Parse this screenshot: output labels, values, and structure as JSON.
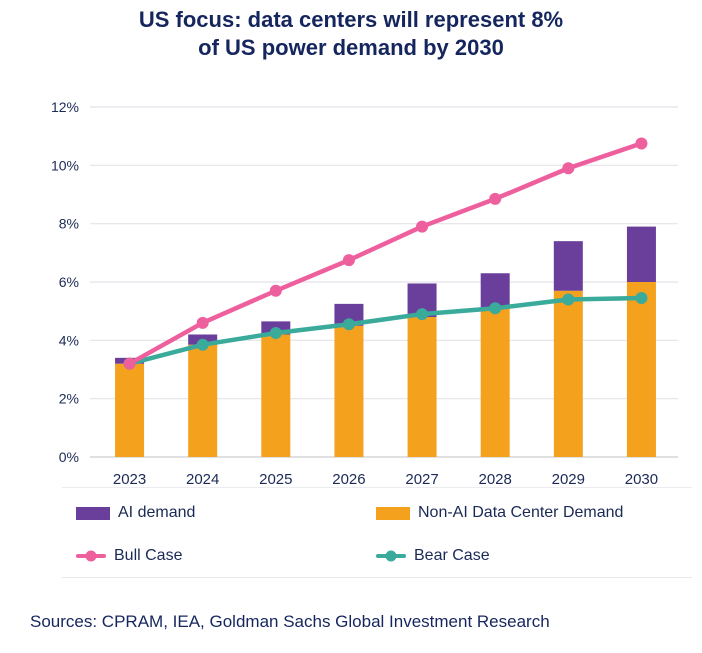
{
  "title": {
    "line1": "US focus: data centers will represent 8%",
    "line2": "of US power demand by 2030"
  },
  "chart_data": {
    "type": "bar",
    "subtype": "stacked-bars-with-lines",
    "categories": [
      "2023",
      "2024",
      "2025",
      "2026",
      "2027",
      "2028",
      "2029",
      "2030"
    ],
    "bar_series": [
      {
        "name": "Non-AI Data Center Demand",
        "color": "#F4A11D",
        "values": [
          3.2,
          3.85,
          4.2,
          4.5,
          4.8,
          5.1,
          5.7,
          6.0
        ]
      },
      {
        "name": "AI demand",
        "color": "#693F9B",
        "values": [
          0.2,
          0.35,
          0.45,
          0.75,
          1.15,
          1.2,
          1.7,
          1.9
        ]
      }
    ],
    "line_series": [
      {
        "name": "Bear Case",
        "color": "#3AAA9B",
        "values": [
          3.2,
          3.85,
          4.25,
          4.55,
          4.9,
          5.1,
          5.4,
          5.45
        ]
      },
      {
        "name": "Bull Case",
        "color": "#EE5F9E",
        "values": [
          3.2,
          4.6,
          5.7,
          6.75,
          7.9,
          8.85,
          9.9,
          10.75
        ]
      }
    ],
    "title": "US focus: data centers will represent 8% of US power demand by 2030",
    "xlabel": "",
    "ylabel": "",
    "ylim": [
      0,
      12
    ],
    "ytick_step": 2,
    "ytick_labels": [
      "0%",
      "2%",
      "4%",
      "6%",
      "8%",
      "10%",
      "12%"
    ],
    "grid": true,
    "legend_position": "bottom"
  },
  "legend": {
    "items": [
      {
        "label": "AI demand",
        "type": "bar",
        "color": "#693F9B"
      },
      {
        "label": "Non-AI Data Center Demand",
        "type": "bar",
        "color": "#F4A11D"
      },
      {
        "label": "Bull Case",
        "type": "line",
        "color": "#EE5F9E"
      },
      {
        "label": "Bear Case",
        "type": "line",
        "color": "#3AAA9B"
      }
    ]
  },
  "footer": {
    "sources": "Sources: CPRAM, IEA, Goldman Sachs Global Investment Research"
  },
  "colors": {
    "title_text": "#15265E",
    "axis_text": "#1B2A55",
    "gridline": "#E4E4E9",
    "axis_line": "#D5D5DA",
    "background": "#FFFFFF"
  }
}
